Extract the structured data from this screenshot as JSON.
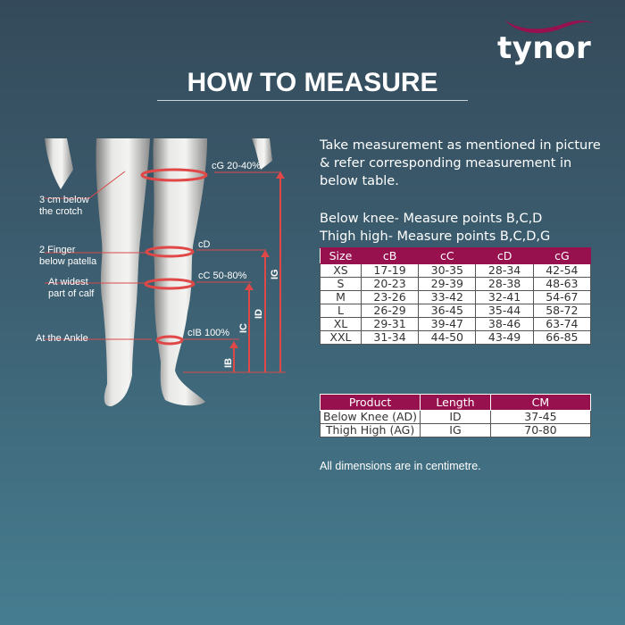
{
  "brand": {
    "name": "tynor",
    "accent": "#98114f"
  },
  "title": "HOW TO MEASURE",
  "intro": {
    "line1": "Take measurement as mentioned in picture",
    "line2": "& refer corresponding measurement in",
    "line3": "below table.",
    "below_knee": "Below knee- Measure points B,C,D",
    "thigh_high": "Thigh high- Measure points B,C,D,G"
  },
  "figure": {
    "left_labels": {
      "crotch1": "3 cm below",
      "crotch2": "the crotch",
      "patella1": "2 Finger",
      "patella2": "below patella",
      "calf1": "At widest",
      "calf2": "part of calf",
      "ankle": "At the Ankle"
    },
    "right_labels": {
      "cG": "cG 20-40%",
      "cD": "cD",
      "cC": "cC 50-80%",
      "cB": "cIB 100%"
    },
    "lengths": {
      "IB": "IB",
      "IC": "IC",
      "ID": "ID",
      "IG": "IG"
    }
  },
  "size_table": {
    "headers": [
      "Size",
      "cB",
      "cC",
      "cD",
      "cG"
    ],
    "rows": [
      [
        "XS",
        "17-19",
        "30-35",
        "28-34",
        "42-54"
      ],
      [
        "S",
        "20-23",
        "29-39",
        "28-38",
        "48-63"
      ],
      [
        "M",
        "23-26",
        "33-42",
        "32-41",
        "54-67"
      ],
      [
        "L",
        "26-29",
        "36-45",
        "35-44",
        "58-72"
      ],
      [
        "XL",
        "29-31",
        "39-47",
        "38-46",
        "63-74"
      ],
      [
        "XXL",
        "31-34",
        "44-50",
        "43-49",
        "66-85"
      ]
    ]
  },
  "product_table": {
    "headers": [
      "Product",
      "Length",
      "CM"
    ],
    "rows": [
      [
        "Below Knee (AD)",
        "ID",
        "37-45"
      ],
      [
        "Thigh High (AG)",
        "IG",
        "70-80"
      ]
    ]
  },
  "note": "All dimensions are in centimetre."
}
